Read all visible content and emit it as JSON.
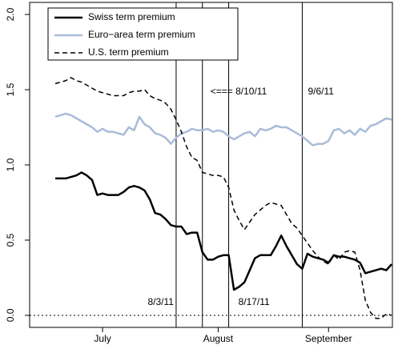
{
  "chart_data": {
    "type": "line",
    "categories": [
      null,
      null,
      null,
      null,
      null,
      null,
      null,
      null,
      null,
      "July",
      null,
      null,
      null,
      null,
      null,
      null,
      null,
      null,
      null,
      null,
      null,
      null,
      null,
      null,
      null,
      null,
      null,
      null,
      null,
      null,
      null,
      "August",
      null,
      null,
      null,
      null,
      null,
      null,
      null,
      null,
      null,
      null,
      null,
      null,
      null,
      null,
      null,
      null,
      null,
      null,
      null,
      null,
      "September",
      null,
      null,
      null,
      null,
      null,
      null,
      null,
      null,
      null,
      null,
      null,
      null
    ],
    "series": [
      {
        "name": "Swiss term premium",
        "color": "#000000",
        "dashed": false,
        "values": [
          0.91,
          0.91,
          0.91,
          0.92,
          0.93,
          0.95,
          0.93,
          0.9,
          0.8,
          0.81,
          0.8,
          0.8,
          0.8,
          0.82,
          0.85,
          0.86,
          0.85,
          0.83,
          0.77,
          0.68,
          0.67,
          0.64,
          0.6,
          0.59,
          0.59,
          0.54,
          0.55,
          0.55,
          0.42,
          0.37,
          0.37,
          0.39,
          0.4,
          0.4,
          0.17,
          0.19,
          0.22,
          0.3,
          0.38,
          0.4,
          0.4,
          0.4,
          0.46,
          0.53,
          0.46,
          0.4,
          0.34,
          0.31,
          0.41,
          0.39,
          0.38,
          0.37,
          0.35,
          0.4,
          0.39,
          0.39,
          0.38,
          0.37,
          0.35,
          0.28,
          0.29,
          0.3,
          0.31,
          0.3,
          0.34
        ]
      },
      {
        "name": "Euro−area term premium",
        "color": "#a9bcd9",
        "dashed": false,
        "values": [
          1.32,
          1.33,
          1.34,
          1.33,
          1.31,
          1.29,
          1.27,
          1.25,
          1.22,
          1.24,
          1.22,
          1.22,
          1.21,
          1.2,
          1.25,
          1.23,
          1.32,
          1.27,
          1.25,
          1.21,
          1.2,
          1.18,
          1.14,
          1.18,
          1.21,
          1.22,
          1.24,
          1.23,
          1.23,
          1.24,
          1.22,
          1.23,
          1.22,
          1.19,
          1.17,
          1.19,
          1.21,
          1.22,
          1.19,
          1.24,
          1.23,
          1.24,
          1.26,
          1.25,
          1.25,
          1.23,
          1.21,
          1.19,
          1.16,
          1.13,
          1.14,
          1.14,
          1.16,
          1.23,
          1.24,
          1.21,
          1.23,
          1.2,
          1.24,
          1.22,
          1.26,
          1.27,
          1.29,
          1.31,
          1.3
        ]
      },
      {
        "name": "U.S. term premium",
        "color": "#000000",
        "dashed": true,
        "values": [
          1.54,
          1.55,
          1.56,
          1.58,
          1.56,
          1.55,
          1.53,
          1.51,
          1.49,
          1.48,
          1.47,
          1.46,
          1.46,
          1.46,
          1.48,
          1.49,
          1.49,
          1.5,
          1.46,
          1.44,
          1.43,
          1.41,
          1.37,
          1.3,
          1.22,
          1.12,
          1.05,
          1.03,
          0.95,
          0.94,
          0.93,
          0.93,
          0.92,
          0.85,
          0.7,
          0.63,
          0.57,
          0.62,
          0.67,
          0.7,
          0.73,
          0.75,
          0.74,
          0.73,
          0.67,
          0.61,
          0.58,
          0.53,
          0.48,
          0.43,
          0.39,
          0.36,
          0.34,
          0.4,
          0.37,
          0.42,
          0.43,
          0.42,
          0.3,
          0.1,
          0.02,
          -0.02,
          -0.02,
          0.01,
          0.0
        ]
      }
    ],
    "event_lines": [
      {
        "x": 23,
        "label": "8/3/11"
      },
      {
        "x": 28,
        "label": "<=== 8/10/11"
      },
      {
        "x": 33,
        "label": "8/17/11"
      },
      {
        "x": 47,
        "label": "9/6/11"
      }
    ],
    "reference_line": 0,
    "ylim": [
      -0.08,
      2.08
    ],
    "yticks": [
      {
        "value": 0,
        "label": "0.0"
      },
      {
        "value": 0.5,
        "label": "0.5"
      },
      {
        "value": 1,
        "label": "1.0"
      },
      {
        "value": 1.5,
        "label": "1.5"
      },
      {
        "value": 2,
        "label": "2.0"
      }
    ],
    "legend": "top-left"
  }
}
